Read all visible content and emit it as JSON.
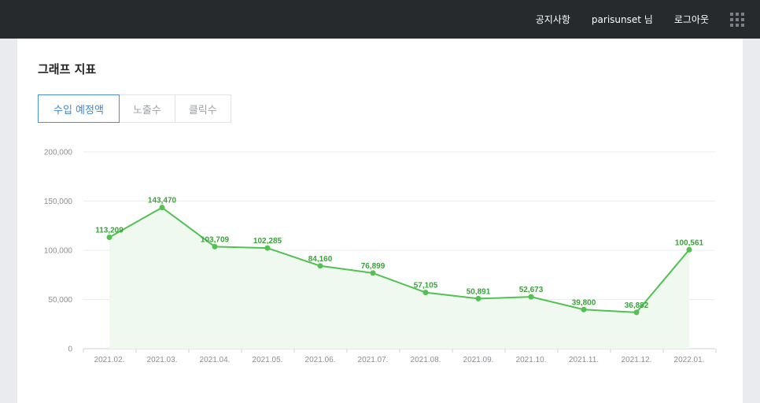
{
  "header": {
    "notice": "공지사항",
    "user": "parisunset 님",
    "logout": "로그아웃",
    "apps_icon": "grid-icon"
  },
  "section": {
    "title": "그래프 지표",
    "tabs": [
      {
        "label": "수입 예정액",
        "active": true
      },
      {
        "label": "노출수",
        "active": false
      },
      {
        "label": "클릭수",
        "active": false
      }
    ]
  },
  "colors": {
    "line": "#52c152",
    "area": "#f0f9f0",
    "accent": "#3d86d6",
    "topbar": "#272a2d"
  },
  "chart_data": {
    "type": "area",
    "categories": [
      "2021.02.",
      "2021.03.",
      "2021.04.",
      "2021.05.",
      "2021.06.",
      "2021.07.",
      "2021.08.",
      "2021.09.",
      "2021.10.",
      "2021.11.",
      "2021.12.",
      "2022.01."
    ],
    "values": [
      113209,
      143470,
      103709,
      102285,
      84160,
      76899,
      57105,
      50891,
      52673,
      39800,
      36882,
      100561
    ],
    "value_labels": [
      "113,209",
      "143,470",
      "103,709",
      "102,285",
      "84,160",
      "76,899",
      "57,105",
      "50,891",
      "52,673",
      "39,800",
      "36,882",
      "100,561"
    ],
    "yticks": [
      0,
      50000,
      100000,
      150000,
      200000
    ],
    "ytick_labels": [
      "0",
      "50,000",
      "100,000",
      "150,000",
      "200,000"
    ],
    "ylim": [
      0,
      200000
    ],
    "grid": true,
    "legend": "none"
  }
}
